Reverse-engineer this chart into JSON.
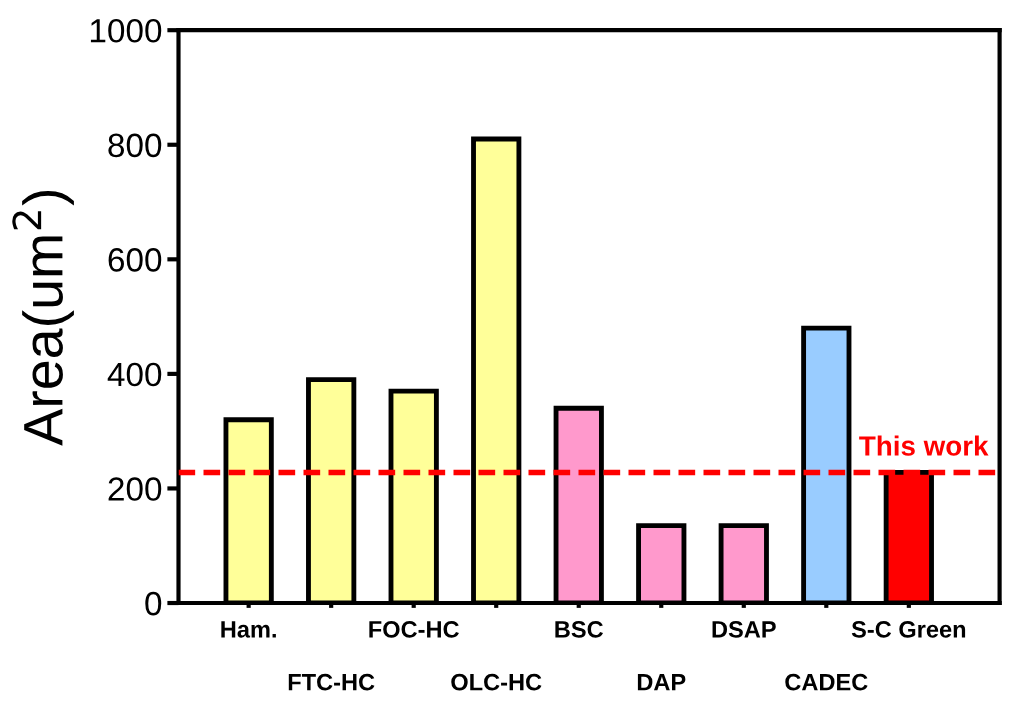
{
  "chart_data": {
    "type": "bar",
    "ylabel": "Area(um$^{2}$)",
    "categories": [
      "Ham.",
      "FTC-HC",
      "FOC-HC",
      "OLC-HC",
      "BSC",
      "DAP",
      "DSAP",
      "CADEC",
      "S-C Green"
    ],
    "values": [
      320,
      390,
      370,
      810,
      340,
      135,
      135,
      480,
      228
    ],
    "colors": [
      "#ffff99",
      "#ffff99",
      "#ffff99",
      "#ffff99",
      "#ff99cc",
      "#ff99cc",
      "#ff99cc",
      "#99ccff",
      "#ff0000"
    ],
    "ylim": [
      0,
      1000
    ],
    "yticks": [
      0,
      200,
      400,
      600,
      800,
      1000
    ],
    "grid": false,
    "ref_lines": [
      {
        "axis": "y",
        "value": 228,
        "label": "This work",
        "color": "#ff0000",
        "line_style": "dashed"
      }
    ]
  }
}
